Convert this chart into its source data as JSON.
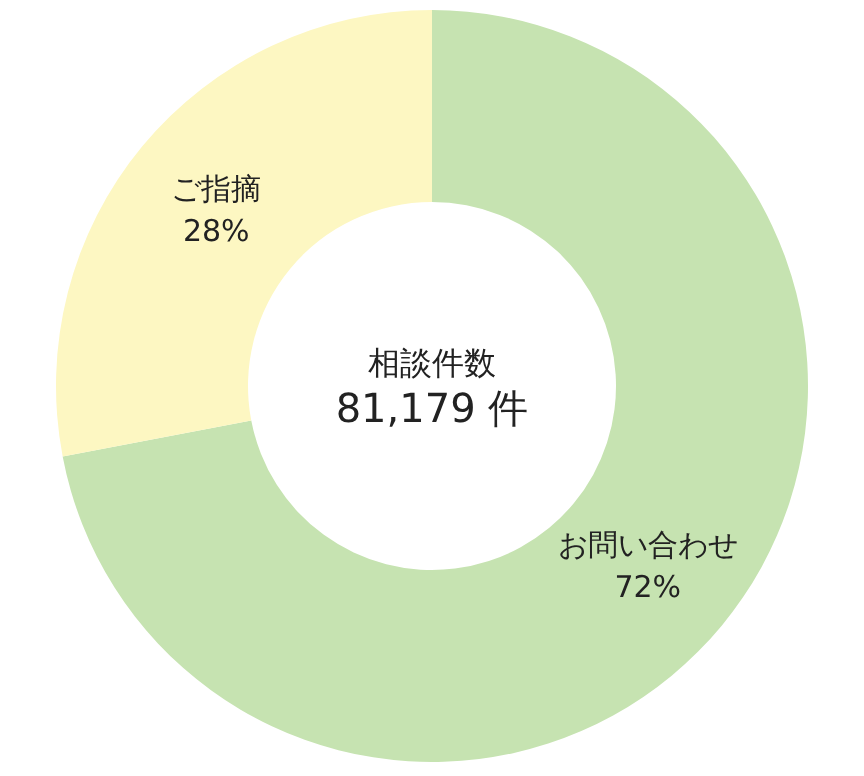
{
  "chart_data": {
    "type": "donut",
    "categories": [
      "お問い合わせ",
      "ご指摘"
    ],
    "values": [
      72,
      28
    ],
    "colors": [
      "#c6e3b1",
      "#fdf7c2"
    ],
    "value_labels": [
      "72%",
      "28%"
    ],
    "annotations": [
      "相談件数",
      "81,179 件"
    ]
  }
}
